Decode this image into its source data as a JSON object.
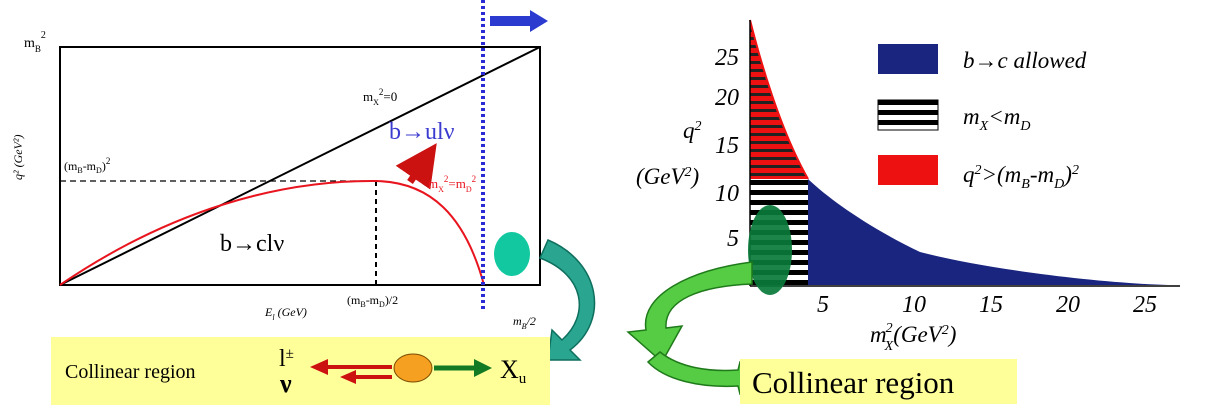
{
  "colors": {
    "blue_region": "#1a2580",
    "red_region": "#ee1111",
    "kinematic_curve": "#e8141e",
    "ellipse_green": "#0a7a3a",
    "teal_dot": "#12c8a0",
    "yellow_box": "#ffff99",
    "cut_line": "#2b2bd6"
  },
  "left_diagram": {
    "y_top_label_base": "m",
    "y_top_label_sub": "B",
    "y_top_label_sup": "2",
    "y_axis_label": "q² (GeV²)",
    "y_mid_label_base": "(m",
    "y_mid_label_sub1": "B",
    "y_mid_label_dash": "-m",
    "y_mid_label_sub2": "D",
    "y_mid_label_end": ")",
    "y_mid_label_sup": "2",
    "line_label_base": "m",
    "line_label_sub": "X",
    "line_label_sup": "2",
    "line_label_eq": "=0",
    "curve_label_base": "m",
    "curve_label_sub1": "X",
    "curve_label_sup1": "2",
    "curve_label_eq": "=m",
    "curve_label_sub2": "D",
    "curve_label_sup2": "2",
    "region_bul": "b→ulν",
    "region_bcl": "b→clν",
    "x_axis_label": "E",
    "x_axis_label_sub": "l",
    "x_axis_label_unit": " (GeV)",
    "x_tick_base": "(m",
    "x_tick_sub1": "B",
    "x_tick_dash": "-m",
    "x_tick_sub2": "D",
    "x_tick_end": ")/2",
    "x_end_base": "m",
    "x_end_sub": "B",
    "x_end_rest": "/2"
  },
  "collinear_box_left": {
    "label": "Collinear region",
    "lepton": "l",
    "lepton_sup": "±",
    "neutrino": "ν",
    "hadron": "X",
    "hadron_sub": "u"
  },
  "right_diagram": {
    "y_axis_label_q": "q",
    "y_axis_label_q_sup": "2",
    "y_axis_label_unit": "(GeV",
    "y_axis_label_unit_sup": "2",
    "y_axis_label_close": ")",
    "x_axis_label_m": "m",
    "x_axis_label_m_sup": "2",
    "x_axis_label_m_sub": "X",
    "x_axis_label_unit": "(GeV",
    "x_axis_label_unit_sup": "2",
    "x_axis_label_close": ")",
    "y_ticks": [
      "25",
      "20",
      "15",
      "10",
      "5"
    ],
    "x_ticks": [
      "5",
      "10",
      "15",
      "20",
      "25"
    ],
    "legend": {
      "allowed": "b→c allowed",
      "mx_base": "m",
      "mx_sub": "X",
      "mx_lt": "<m",
      "mx_sub2": "D",
      "q2_base": "q",
      "q2_sup": "2",
      "q2_gt": ">(m",
      "q2_sub1": "B",
      "q2_dash": "-m",
      "q2_sub2": "D",
      "q2_close": ")",
      "q2_sup2": "2"
    }
  },
  "collinear_box_right": {
    "label": "Collinear region"
  }
}
